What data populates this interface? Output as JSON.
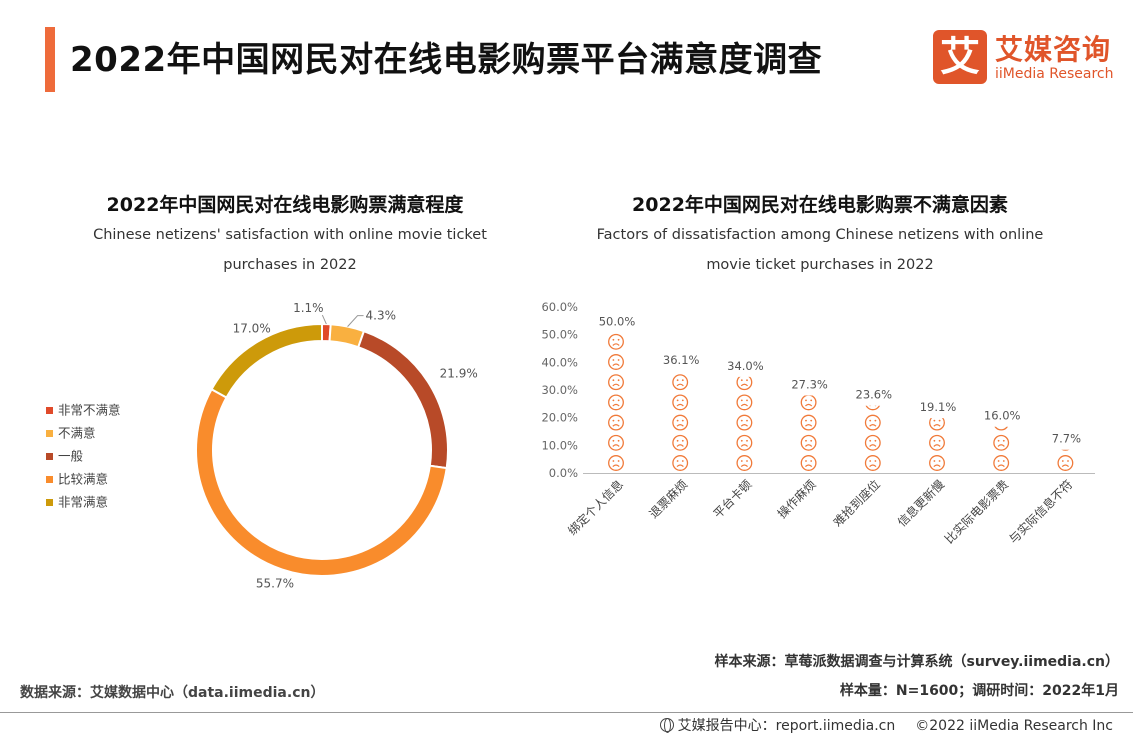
{
  "header": {
    "title": "2022年中国网民对在线电影购票平台满意度调查"
  },
  "logo": {
    "mark": "艾",
    "name_cn": "艾媒咨询",
    "name_en": "iiMedia Research",
    "brand_color": "#e0552a"
  },
  "chart_data": [
    {
      "type": "pie",
      "title": "2022年中国网民对在线电影购票满意程度",
      "subtitle_line1": "Chinese netizens' satisfaction with online movie ticket",
      "subtitle_line2": "purchases in 2022",
      "legend_position": "left",
      "categories": [
        "非常不满意",
        "不满意",
        "一般",
        "比较满意",
        "非常满意"
      ],
      "values": [
        1.1,
        4.3,
        21.9,
        55.7,
        17.0
      ],
      "labels": [
        "1.1%",
        "4.3%",
        "21.9%",
        "55.7%",
        "17.0%"
      ],
      "colors": [
        "#e04a2a",
        "#f9b040",
        "#b84a28",
        "#f98c2c",
        "#cd9a0a"
      ]
    },
    {
      "type": "bar",
      "title": "2022年中国网民对在线电影购票不满意因素",
      "subtitle_line1": "Factors of dissatisfaction among Chinese netizens with online",
      "subtitle_line2": "movie ticket purchases in 2022",
      "categories": [
        "绑定个人信息",
        "退票麻烦",
        "平台卡顿",
        "操作麻烦",
        "难抢到座位",
        "信息更新慢",
        "比实际电影票贵",
        "与实际信息不符"
      ],
      "values": [
        50.0,
        36.1,
        34.0,
        27.3,
        23.6,
        19.1,
        16.0,
        7.7
      ],
      "labels": [
        "50.0%",
        "36.1%",
        "34.0%",
        "27.3%",
        "23.6%",
        "19.1%",
        "16.0%",
        "7.7%"
      ],
      "ylim": [
        0,
        60
      ],
      "yticks": [
        "0.0%",
        "10.0%",
        "20.0%",
        "30.0%",
        "40.0%",
        "50.0%",
        "60.0%"
      ],
      "mark_icon": "sad-face-icon",
      "color": "#f07a3a"
    }
  ],
  "sources": {
    "sample_source": "样本来源：草莓派数据调查与计算系统（survey.iimedia.cn）",
    "sample_size": "样本量：N=1600；调研时间：2022年1月",
    "data_source": "数据来源：艾媒数据中心（data.iimedia.cn）"
  },
  "footer": {
    "report_center": "艾媒报告中心：report.iimedia.cn",
    "copyright": "©2022  iiMedia Research  Inc"
  }
}
